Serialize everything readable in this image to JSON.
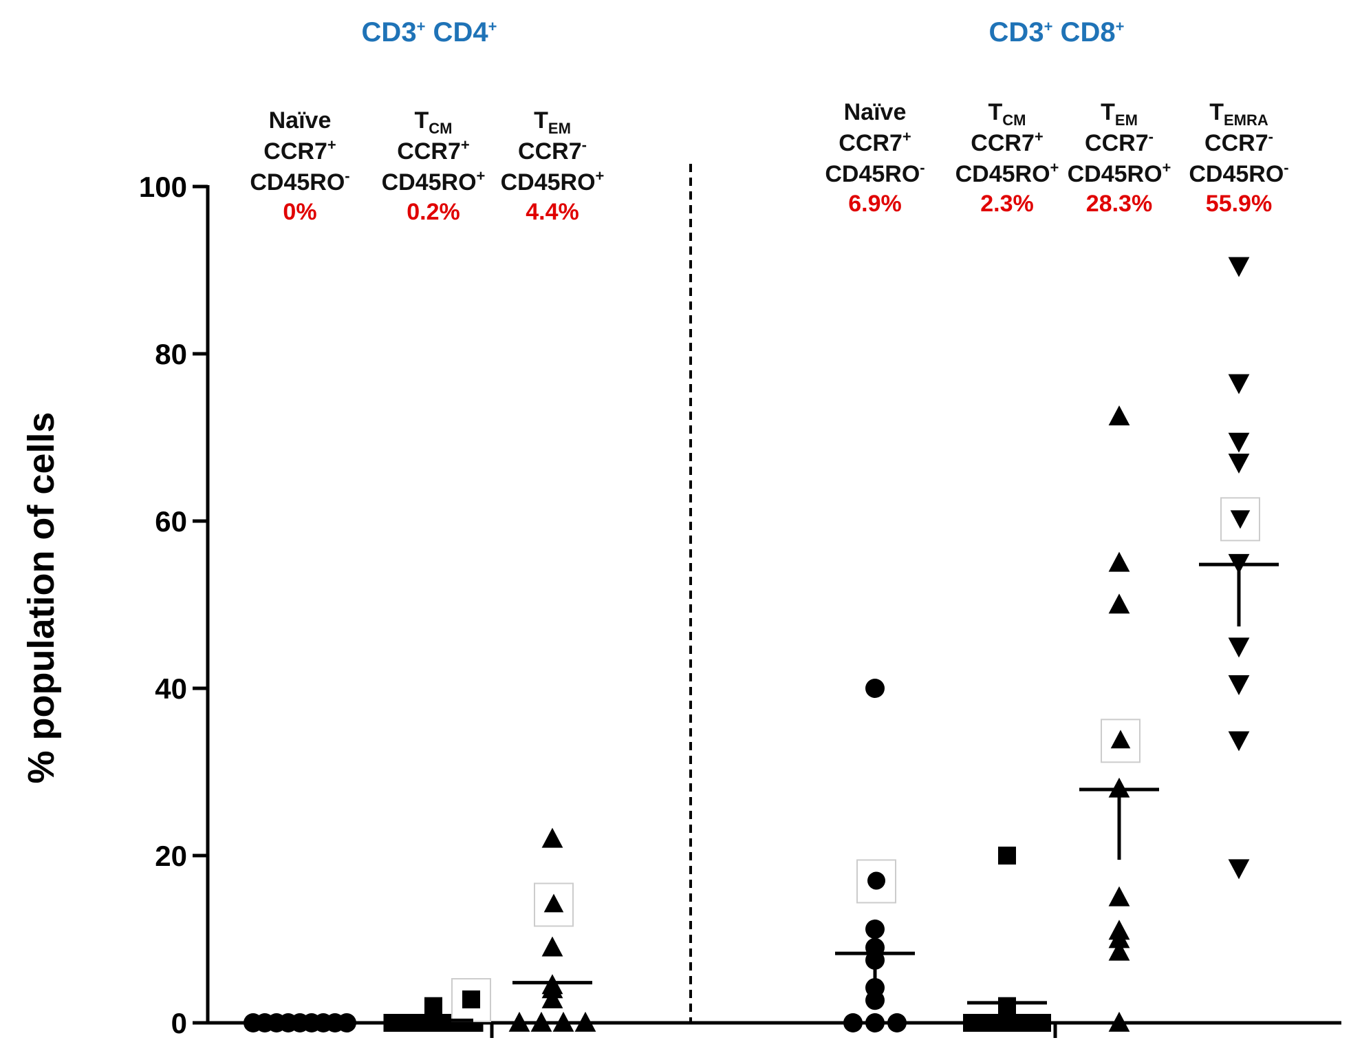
{
  "chart_data": {
    "type": "scatter",
    "ylabel": "% population of cells",
    "ylim": [
      0,
      100
    ],
    "yticks": [
      "0",
      "20",
      "40",
      "60",
      "80",
      "100"
    ],
    "grid": false,
    "groups": [
      {
        "title": "CD3",
        "title_sup1": "+",
        "title_b": " CD4",
        "title_sup2": "+",
        "categories": [
          {
            "name": "Naïve",
            "name_sub": "",
            "line2": "CCR7",
            "line2_sup": "+",
            "line3": "CD45RO",
            "line3_sup": "-",
            "pct": "0%",
            "marker": "circle",
            "mean": 0,
            "sem": 0,
            "points": [
              0,
              0,
              0,
              0,
              0,
              0,
              0,
              0,
              0
            ],
            "highlighted": []
          },
          {
            "name": "T",
            "name_sub": "CM",
            "line2": "CCR7",
            "line2_sup": "+",
            "line3": "CD45RO",
            "line3_sup": "+",
            "pct": "0.2%",
            "marker": "square",
            "mean": 0.3,
            "sem": 0.2,
            "points": [
              2,
              0,
              0,
              0,
              0,
              0,
              0,
              0,
              0
            ],
            "highlighted": [
              2.8
            ]
          },
          {
            "name": "T",
            "name_sub": "EM",
            "line2": "CCR7",
            "line2_sup": "-",
            "line3": "CD45RO",
            "line3_sup": "+",
            "pct": "4.4%",
            "marker": "triangle-up",
            "mean": 4.8,
            "sem": 2.5,
            "points": [
              22,
              9,
              4.5,
              4,
              2.8,
              0,
              0,
              0,
              0
            ],
            "highlighted": [
              14.2
            ]
          }
        ]
      },
      {
        "title": "CD3",
        "title_sup1": "+",
        "title_b": " CD8",
        "title_sup2": "+",
        "categories": [
          {
            "name": "Naïve",
            "name_sub": "",
            "line2": "CCR7",
            "line2_sup": "+",
            "line3": "CD45RO",
            "line3_sup": "-",
            "pct": "6.9%",
            "marker": "circle",
            "mean": 8.3,
            "sem": 4.2,
            "points": [
              40,
              11.2,
              9,
              7.5,
              4.2,
              2.7,
              0,
              0,
              0
            ],
            "highlighted": [
              17
            ]
          },
          {
            "name": "T",
            "name_sub": "CM",
            "line2": "CCR7",
            "line2_sup": "+",
            "line3": "CD45RO",
            "line3_sup": "+",
            "pct": "2.3%",
            "marker": "square",
            "mean": 2.4,
            "sem": 2.1,
            "points": [
              20,
              2,
              0,
              0,
              0,
              0,
              0,
              0,
              0
            ],
            "highlighted": []
          },
          {
            "name": "T",
            "name_sub": "EM",
            "line2": "CCR7",
            "line2_sup": "-",
            "line3": "CD45RO",
            "line3_sup": "+",
            "pct": "28.3%",
            "marker": "triangle-up",
            "mean": 27.9,
            "sem": 8.4,
            "points": [
              72.5,
              55,
              50,
              28,
              15,
              11,
              10,
              8.5,
              0
            ],
            "highlighted": [
              33.8
            ]
          },
          {
            "name": "T",
            "name_sub": "EMRA",
            "line2": "CCR7",
            "line2_sup": "-",
            "line3": "CD45RO",
            "line3_sup": "-",
            "pct": "55.9%",
            "marker": "triangle-down",
            "mean": 54.8,
            "sem": 7.4,
            "points": [
              90.5,
              76.5,
              69.5,
              67,
              55,
              45,
              40.5,
              33.8,
              18.5
            ],
            "highlighted": [
              60.3
            ]
          }
        ]
      }
    ]
  }
}
